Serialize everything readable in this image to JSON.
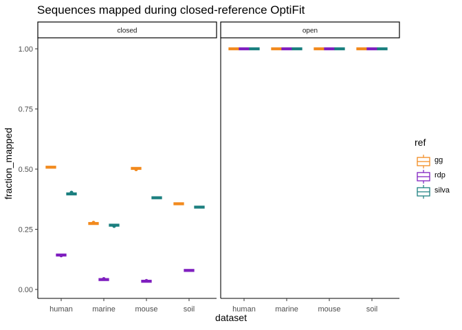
{
  "chart_data": {
    "type": "boxplot",
    "title": "Sequences mapped during closed-reference OptiFit",
    "xlabel": "dataset",
    "ylabel": "fraction_mapped",
    "ylim": [
      0.0,
      1.0
    ],
    "yticks": [
      "0.00",
      "0.25",
      "0.50",
      "0.75",
      "1.00"
    ],
    "categories": [
      "human",
      "marine",
      "mouse",
      "soil"
    ],
    "facets": [
      "closed",
      "open"
    ],
    "legend": {
      "title": "ref",
      "position": "right",
      "entries": [
        {
          "name": "gg",
          "color": "#F28A1E"
        },
        {
          "name": "rdp",
          "color": "#7F1FBF"
        },
        {
          "name": "silva",
          "color": "#1B7F7F"
        }
      ]
    },
    "grid": false,
    "series": [
      {
        "facet": "closed",
        "ref": "gg",
        "values": [
          0.508,
          0.274,
          0.503,
          0.356
        ]
      },
      {
        "facet": "closed",
        "ref": "rdp",
        "values": [
          0.143,
          0.041,
          0.034,
          0.079
        ]
      },
      {
        "facet": "closed",
        "ref": "silva",
        "values": [
          0.397,
          0.267,
          0.381,
          0.342
        ]
      },
      {
        "facet": "open",
        "ref": "gg",
        "values": [
          1.0,
          1.0,
          1.0,
          1.0
        ]
      },
      {
        "facet": "open",
        "ref": "rdp",
        "values": [
          1.0,
          1.0,
          1.0,
          1.0
        ]
      },
      {
        "facet": "open",
        "ref": "silva",
        "values": [
          1.0,
          1.0,
          1.0,
          1.0
        ]
      }
    ],
    "outliers": [
      {
        "facet": "closed",
        "ref": "silva",
        "category": "human",
        "value": 0.403
      },
      {
        "facet": "closed",
        "ref": "gg",
        "category": "marine",
        "value": 0.278
      },
      {
        "facet": "closed",
        "ref": "silva",
        "category": "marine",
        "value": 0.263
      },
      {
        "facet": "closed",
        "ref": "gg",
        "category": "mouse",
        "value": 0.499
      },
      {
        "facet": "closed",
        "ref": "rdp",
        "category": "human",
        "value": 0.141
      },
      {
        "facet": "closed",
        "ref": "rdp",
        "category": "marine",
        "value": 0.044
      },
      {
        "facet": "closed",
        "ref": "rdp",
        "category": "mouse",
        "value": 0.036
      }
    ]
  }
}
